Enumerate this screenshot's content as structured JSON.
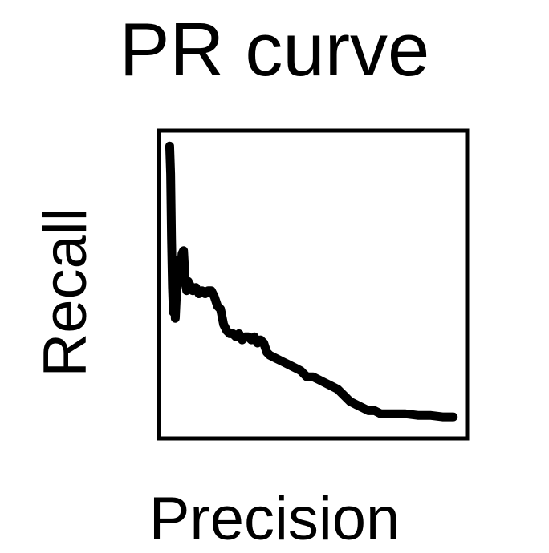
{
  "chart_data": {
    "type": "line",
    "title": "PR curve",
    "xlabel": "Precision",
    "ylabel": "Recall",
    "xlim": [
      0,
      1
    ],
    "ylim": [
      0,
      1
    ],
    "grid": false,
    "series": [
      {
        "x": [
          0.035,
          0.038,
          0.041,
          0.044,
          0.047,
          0.05,
          0.053,
          0.056,
          0.06,
          0.065,
          0.07,
          0.075,
          0.08,
          0.085,
          0.09,
          0.095,
          0.1,
          0.11,
          0.12,
          0.13,
          0.14,
          0.15,
          0.16,
          0.17,
          0.175,
          0.18,
          0.19,
          0.2,
          0.21,
          0.22,
          0.23,
          0.24,
          0.25,
          0.26,
          0.27,
          0.28,
          0.29,
          0.3,
          0.31,
          0.32,
          0.33,
          0.34,
          0.35,
          0.36,
          0.38,
          0.4,
          0.42,
          0.44,
          0.46,
          0.48,
          0.5,
          0.52,
          0.54,
          0.56,
          0.58,
          0.6,
          0.62,
          0.64,
          0.66,
          0.68,
          0.7,
          0.72,
          0.74,
          0.76,
          0.78,
          0.8,
          0.84,
          0.88,
          0.92,
          0.955
        ],
        "y": [
          0.95,
          0.86,
          0.65,
          0.49,
          0.41,
          0.52,
          0.39,
          0.45,
          0.5,
          0.58,
          0.53,
          0.6,
          0.61,
          0.52,
          0.48,
          0.51,
          0.5,
          0.48,
          0.49,
          0.47,
          0.48,
          0.47,
          0.48,
          0.48,
          0.47,
          0.46,
          0.43,
          0.42,
          0.37,
          0.35,
          0.34,
          0.34,
          0.33,
          0.34,
          0.32,
          0.33,
          0.33,
          0.32,
          0.33,
          0.31,
          0.32,
          0.31,
          0.28,
          0.27,
          0.26,
          0.25,
          0.24,
          0.23,
          0.22,
          0.2,
          0.2,
          0.19,
          0.18,
          0.17,
          0.16,
          0.14,
          0.12,
          0.11,
          0.1,
          0.09,
          0.09,
          0.08,
          0.08,
          0.08,
          0.08,
          0.08,
          0.075,
          0.075,
          0.07,
          0.07
        ]
      }
    ]
  }
}
